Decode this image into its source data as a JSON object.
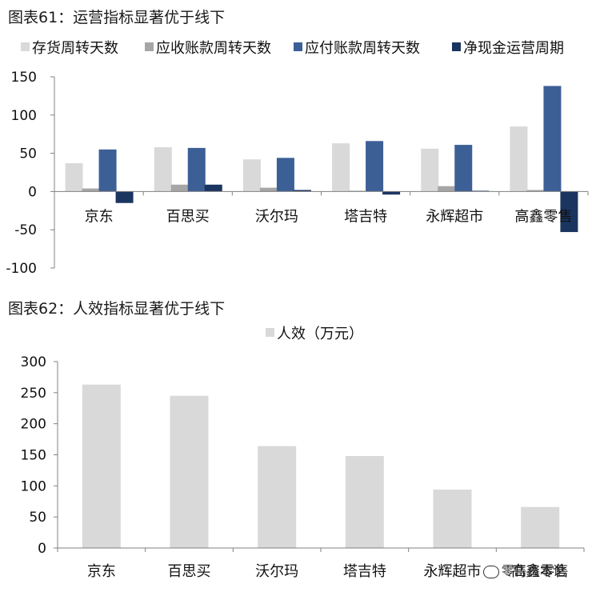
{
  "titles": {
    "chart1": "图表61：运营指标显著优于线下",
    "chart2": "图表62：人效指标显著优于线下"
  },
  "watermark": "零售资本论",
  "chart_data": [
    {
      "type": "bar",
      "title": "图表61：运营指标显著优于线下",
      "categories": [
        "京东",
        "百思买",
        "沃尔玛",
        "塔吉特",
        "永辉超市",
        "高鑫零售"
      ],
      "ylim": [
        -100,
        150
      ],
      "yticks": [
        -100,
        -50,
        0,
        50,
        100,
        150
      ],
      "legend": "top",
      "grid": false,
      "series": [
        {
          "name": "存货周转天数",
          "color": "#d9d9d9",
          "values": [
            37,
            58,
            42,
            63,
            56,
            85
          ]
        },
        {
          "name": "应收账款周转天数",
          "color": "#a6a6a6",
          "values": [
            4,
            9,
            5,
            1,
            7,
            2
          ]
        },
        {
          "name": "应付账款周转天数",
          "color": "#3c5f96",
          "values": [
            55,
            57,
            44,
            66,
            61,
            138
          ]
        },
        {
          "name": "净现金运营周期",
          "color": "#1b3561",
          "values": [
            -15,
            9,
            2,
            -4,
            1,
            -53
          ]
        }
      ]
    },
    {
      "type": "bar",
      "title": "图表62：人效指标显著优于线下",
      "categories": [
        "京东",
        "百思买",
        "沃尔玛",
        "塔吉特",
        "永辉超市",
        "高鑫零售"
      ],
      "ylim": [
        0,
        300
      ],
      "yticks": [
        0,
        50,
        100,
        150,
        200,
        250,
        300
      ],
      "legend": "top",
      "grid": false,
      "series": [
        {
          "name": "人效（万元）",
          "color": "#d9d9d9",
          "values": [
            263,
            245,
            164,
            148,
            94,
            66
          ]
        }
      ]
    }
  ]
}
